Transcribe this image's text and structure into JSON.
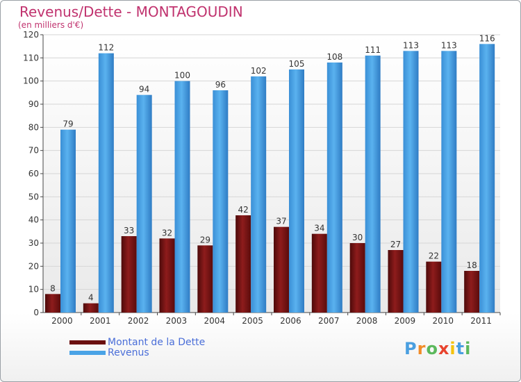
{
  "chart_data": {
    "type": "bar",
    "title": "Revenus/Dette - MONTAGOUDIN",
    "subtitle": "(en milliers d'€)",
    "categories": [
      "2000",
      "2001",
      "2002",
      "2003",
      "2004",
      "2005",
      "2006",
      "2007",
      "2008",
      "2009",
      "2010",
      "2011"
    ],
    "series": [
      {
        "name": "Montant de la Dette",
        "values": [
          8,
          4,
          33,
          32,
          29,
          42,
          37,
          34,
          30,
          27,
          22,
          18
        ],
        "color": "#7a1414"
      },
      {
        "name": "Revenus",
        "values": [
          79,
          112,
          94,
          100,
          96,
          102,
          105,
          108,
          111,
          113,
          113,
          116
        ],
        "color": "#4aa3e6"
      }
    ],
    "ylim": [
      0,
      120
    ],
    "yticks": [
      0,
      10,
      20,
      30,
      40,
      50,
      60,
      70,
      80,
      90,
      100,
      110,
      120
    ],
    "grid": true,
    "legend": "bottom-left"
  },
  "brand": {
    "letters": [
      "P",
      "r",
      "o",
      "x",
      "i",
      "t",
      "i"
    ],
    "colors": [
      "#4a9fe0",
      "#f28c28",
      "#5bb85c",
      "#e8432e",
      "#f4c20d",
      "#4a9fe0",
      "#5bb85c"
    ]
  }
}
